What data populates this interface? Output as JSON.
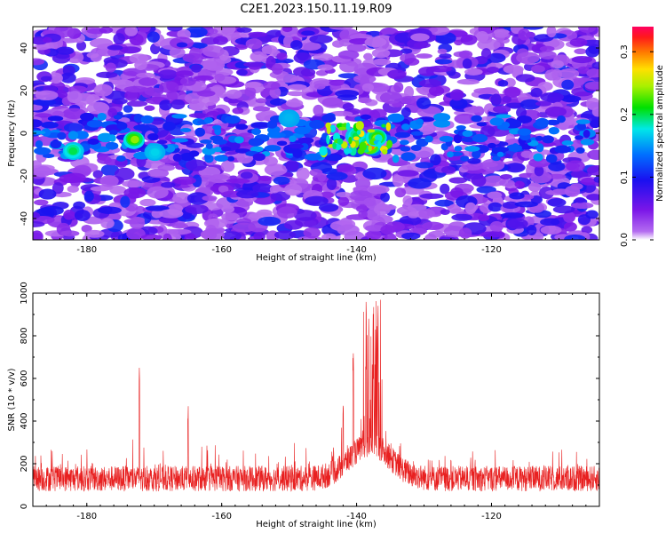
{
  "chart_data": [
    {
      "type": "heatmap",
      "title": "C2E1.2023.150.11.19.R09",
      "xlabel": "Height of straight line (km)",
      "ylabel": "Frequency (Hz)",
      "xlim": [
        -188,
        -104
      ],
      "ylim": [
        -50,
        50
      ],
      "x_ticks": [
        "-180",
        "-160",
        "-140",
        "-120"
      ],
      "y_ticks": [
        "-40",
        "-20",
        "0",
        "20",
        "40"
      ],
      "colorbar": {
        "label": "Normalized spectral amplitude",
        "range": [
          0,
          0.34
        ],
        "ticks": [
          "0.0",
          "0.1",
          "0.2",
          "0.3"
        ]
      },
      "hotspots": [
        {
          "x": -173,
          "y": -3,
          "amplitude": 0.24
        },
        {
          "x": -182,
          "y": -8,
          "amplitude": 0.2
        },
        {
          "x": -140,
          "y": -1,
          "amplitude": 0.2
        },
        {
          "x": -138,
          "y": -6,
          "amplitude": 0.3
        },
        {
          "x": -137,
          "y": -2,
          "amplitude": 0.24
        },
        {
          "x": -170,
          "y": -9,
          "amplitude": 0.17
        },
        {
          "x": -150,
          "y": 7,
          "amplitude": 0.16
        }
      ],
      "colors": {
        "low": "#8a2be2",
        "high": "#ff0055"
      }
    },
    {
      "type": "line",
      "xlabel": "Height of straight line (km)",
      "ylabel": "SNR (10 * v/v)",
      "xlim": [
        -188,
        -104
      ],
      "ylim": [
        0,
        1000
      ],
      "x_ticks": [
        "-180",
        "-160",
        "-140",
        "-120"
      ],
      "y_ticks": [
        "0",
        "200",
        "400",
        "600",
        "800",
        "1000"
      ],
      "color": "#e82020",
      "baseline": 130,
      "peaks": [
        {
          "x": -172.2,
          "y": 655
        },
        {
          "x": -137.5,
          "y": 1000
        },
        {
          "x": -136.8,
          "y": 950
        },
        {
          "x": -138.2,
          "y": 880
        },
        {
          "x": -140.5,
          "y": 730
        },
        {
          "x": -165,
          "y": 470
        },
        {
          "x": -142,
          "y": 500
        }
      ]
    }
  ]
}
